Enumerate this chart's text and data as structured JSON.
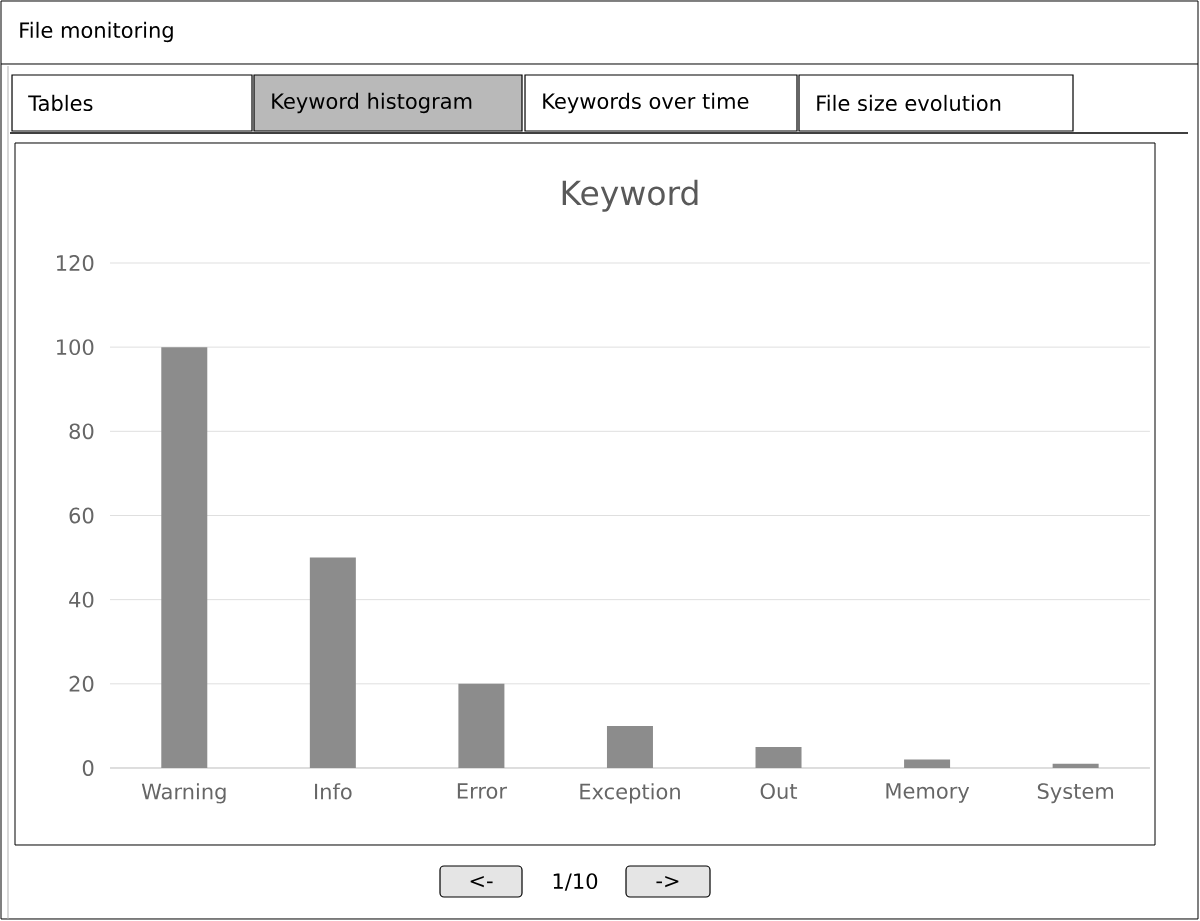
{
  "chart_data": {
    "type": "bar",
    "title": "Keyword",
    "categories": [
      "Warning",
      "Info",
      "Error",
      "Exception",
      "Out",
      "Memory",
      "System"
    ],
    "values": [
      100,
      50,
      20,
      10,
      5,
      2,
      1
    ],
    "color": "#8c8c8c",
    "ylim": [
      0,
      120
    ],
    "yticks": [
      0,
      20,
      40,
      60,
      80,
      100,
      120
    ],
    "grid": "y",
    "annotations": [
      "File monitoring",
      "Tables",
      "Keyword histogram",
      "Keywords over time",
      "File size evolution",
      "<-",
      "1/10",
      "->"
    ]
  }
}
